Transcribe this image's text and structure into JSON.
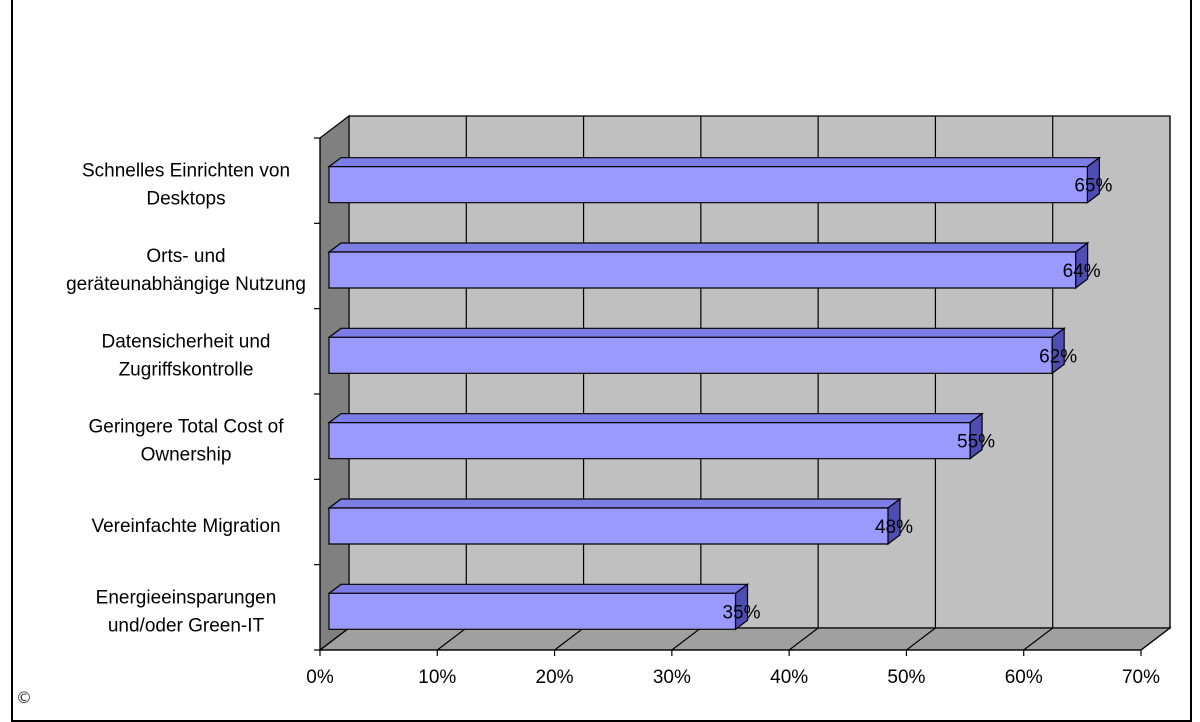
{
  "chart_data": {
    "type": "bar",
    "orientation": "horizontal",
    "style": "3d",
    "categories": [
      [
        "Schnelles Einrichten von",
        "Desktops"
      ],
      [
        "Orts- und",
        "geräteunabhängige Nutzung"
      ],
      [
        "Datensicherheit und",
        "Zugriffskontrolle"
      ],
      [
        "Geringere Total Cost of",
        "Ownership"
      ],
      [
        "Vereinfachte Migration"
      ],
      [
        "Energieeinsparungen",
        "und/oder Green-IT"
      ]
    ],
    "values": [
      65,
      64,
      62,
      55,
      48,
      35
    ],
    "data_labels": [
      "65%",
      "64%",
      "62%",
      "55%",
      "48%",
      "35%"
    ],
    "xlim": [
      0,
      70
    ],
    "x_ticks": [
      "0%",
      "10%",
      "20%",
      "30%",
      "40%",
      "50%",
      "60%",
      "70%"
    ],
    "grid": true,
    "legend": "none",
    "colors": {
      "bar_front": "#9999ff",
      "bar_top": "#7d7de6",
      "bar_side": "#4d4db3",
      "back_wall": "#c0c0c0",
      "side_wall": "#808080",
      "floor": "#a0a0a0",
      "grid": "#000000"
    }
  },
  "copyright_symbol": "©"
}
